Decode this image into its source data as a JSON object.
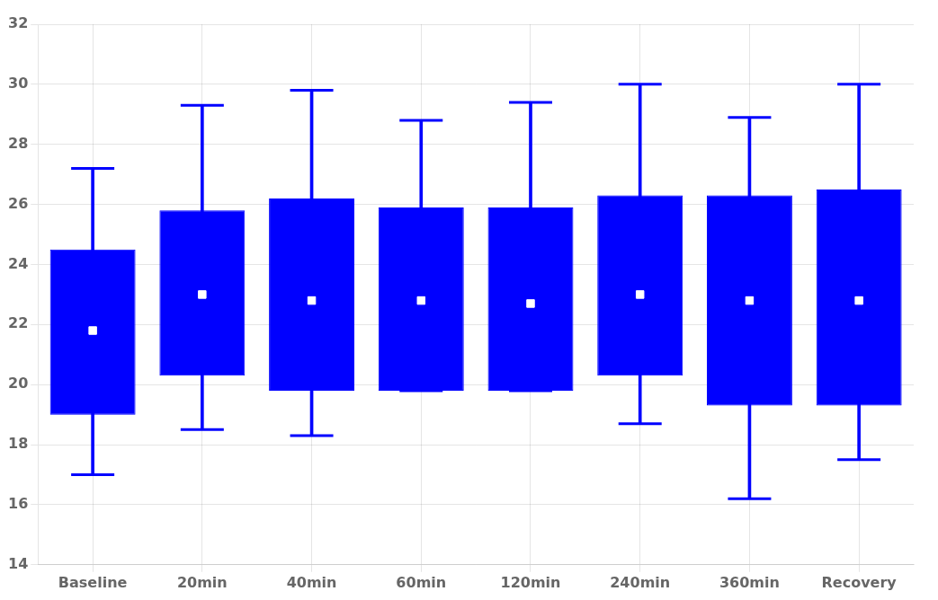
{
  "chart_data": {
    "type": "box",
    "categories": [
      "Baseline",
      "20min",
      "40min",
      "60min",
      "120min",
      "240min",
      "360min",
      "Recovery"
    ],
    "series": [
      {
        "type": "box",
        "color": "#0000FF",
        "values": [
          {
            "whislo": 17.0,
            "q1": 19.0,
            "q3": 24.5,
            "whishi": 27.2
          },
          {
            "whislo": 18.5,
            "q1": 20.3,
            "q3": 25.8,
            "whishi": 29.3
          },
          {
            "whislo": 18.3,
            "q1": 19.8,
            "q3": 26.2,
            "whishi": 29.8
          },
          {
            "whislo": 19.8,
            "q1": 19.8,
            "q3": 25.9,
            "whishi": 28.8
          },
          {
            "whislo": 19.8,
            "q1": 19.8,
            "q3": 25.9,
            "whishi": 29.4
          },
          {
            "whislo": 18.7,
            "q1": 20.3,
            "q3": 26.3,
            "whishi": 30.0
          },
          {
            "whislo": 16.2,
            "q1": 19.3,
            "q3": 26.3,
            "whishi": 28.9
          },
          {
            "whislo": 17.5,
            "q1": 19.3,
            "q3": 26.5,
            "whishi": 30.0
          }
        ]
      },
      {
        "type": "scatter",
        "marker": "square",
        "color": "#FFFFFF",
        "values": [
          21.8,
          23.0,
          22.8,
          22.8,
          22.7,
          23.0,
          22.8,
          22.8
        ]
      }
    ],
    "ylim": [
      14,
      32
    ],
    "yticks": [
      14,
      16,
      18,
      20,
      22,
      24,
      26,
      28,
      30,
      32
    ],
    "grid": true
  }
}
